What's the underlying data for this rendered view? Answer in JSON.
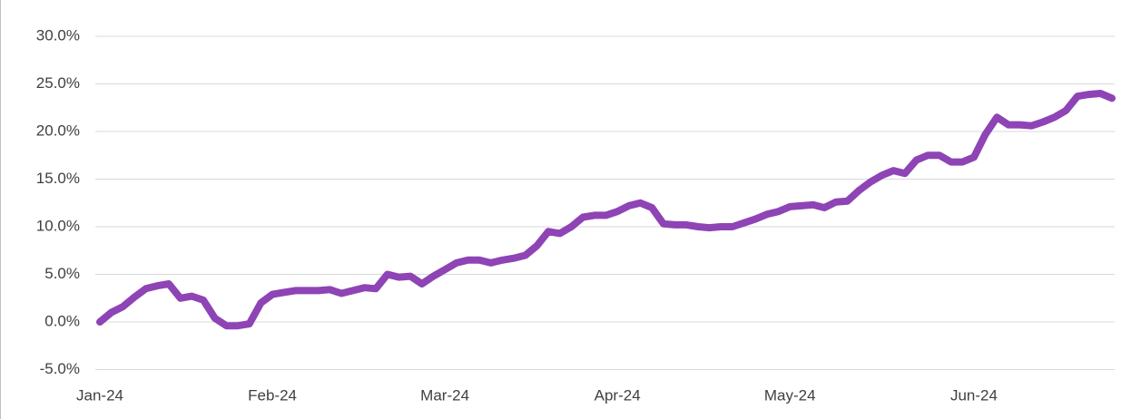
{
  "chart_data": {
    "type": "line",
    "categories": [
      "Jan-24",
      null,
      null,
      null,
      null,
      null,
      null,
      null,
      null,
      null,
      null,
      null,
      null,
      null,
      null,
      "Feb-24",
      null,
      null,
      null,
      null,
      null,
      null,
      null,
      null,
      null,
      null,
      null,
      null,
      null,
      null,
      "Mar-24",
      null,
      null,
      null,
      null,
      null,
      null,
      null,
      null,
      null,
      null,
      null,
      null,
      null,
      null,
      "Apr-24",
      null,
      null,
      null,
      null,
      null,
      null,
      null,
      null,
      null,
      null,
      null,
      null,
      null,
      null,
      "May-24",
      null,
      null,
      null,
      null,
      null,
      null,
      null,
      null,
      null,
      null,
      null,
      null,
      null,
      null,
      null,
      "Jun-24",
      null,
      null,
      null,
      null,
      null,
      null,
      null,
      null,
      null,
      null,
      null,
      null
    ],
    "series": [
      {
        "color": "#8e44b5",
        "values": [
          0.0,
          1.0,
          1.6,
          2.6,
          3.5,
          3.8,
          4.0,
          2.5,
          2.7,
          2.3,
          0.4,
          -0.4,
          -0.4,
          -0.2,
          2.0,
          2.9,
          3.1,
          3.3,
          3.3,
          3.3,
          3.4,
          3.0,
          3.3,
          3.6,
          3.5,
          5.0,
          4.7,
          4.8,
          4.0,
          4.8,
          5.5,
          6.2,
          6.5,
          6.5,
          6.2,
          6.5,
          6.7,
          7.0,
          8.0,
          9.5,
          9.3,
          10.0,
          11.0,
          11.2,
          11.2,
          11.6,
          12.2,
          12.5,
          12.0,
          10.3,
          10.2,
          10.2,
          10.0,
          9.9,
          10.0,
          10.0,
          10.4,
          10.8,
          11.3,
          11.6,
          12.1,
          12.2,
          12.3,
          12.0,
          12.6,
          12.7,
          13.8,
          14.7,
          15.4,
          15.9,
          15.6,
          17.0,
          17.5,
          17.5,
          16.8,
          16.8,
          17.3,
          19.7,
          21.5,
          20.7,
          20.7,
          20.6,
          21.0,
          21.5,
          22.2,
          23.7,
          23.9,
          24.0,
          23.5
        ]
      }
    ],
    "ylim": [
      -5,
      30
    ],
    "yticks": [
      {
        "value": -5,
        "label": "-5.0%"
      },
      {
        "value": 0,
        "label": "0.0%"
      },
      {
        "value": 5,
        "label": "5.0%"
      },
      {
        "value": 10,
        "label": "10.0%"
      },
      {
        "value": 15,
        "label": "15.0%"
      },
      {
        "value": 20,
        "label": "20.0%"
      },
      {
        "value": 25,
        "label": "25.0%"
      },
      {
        "value": 30,
        "label": "30.0%"
      }
    ],
    "grid": true
  }
}
